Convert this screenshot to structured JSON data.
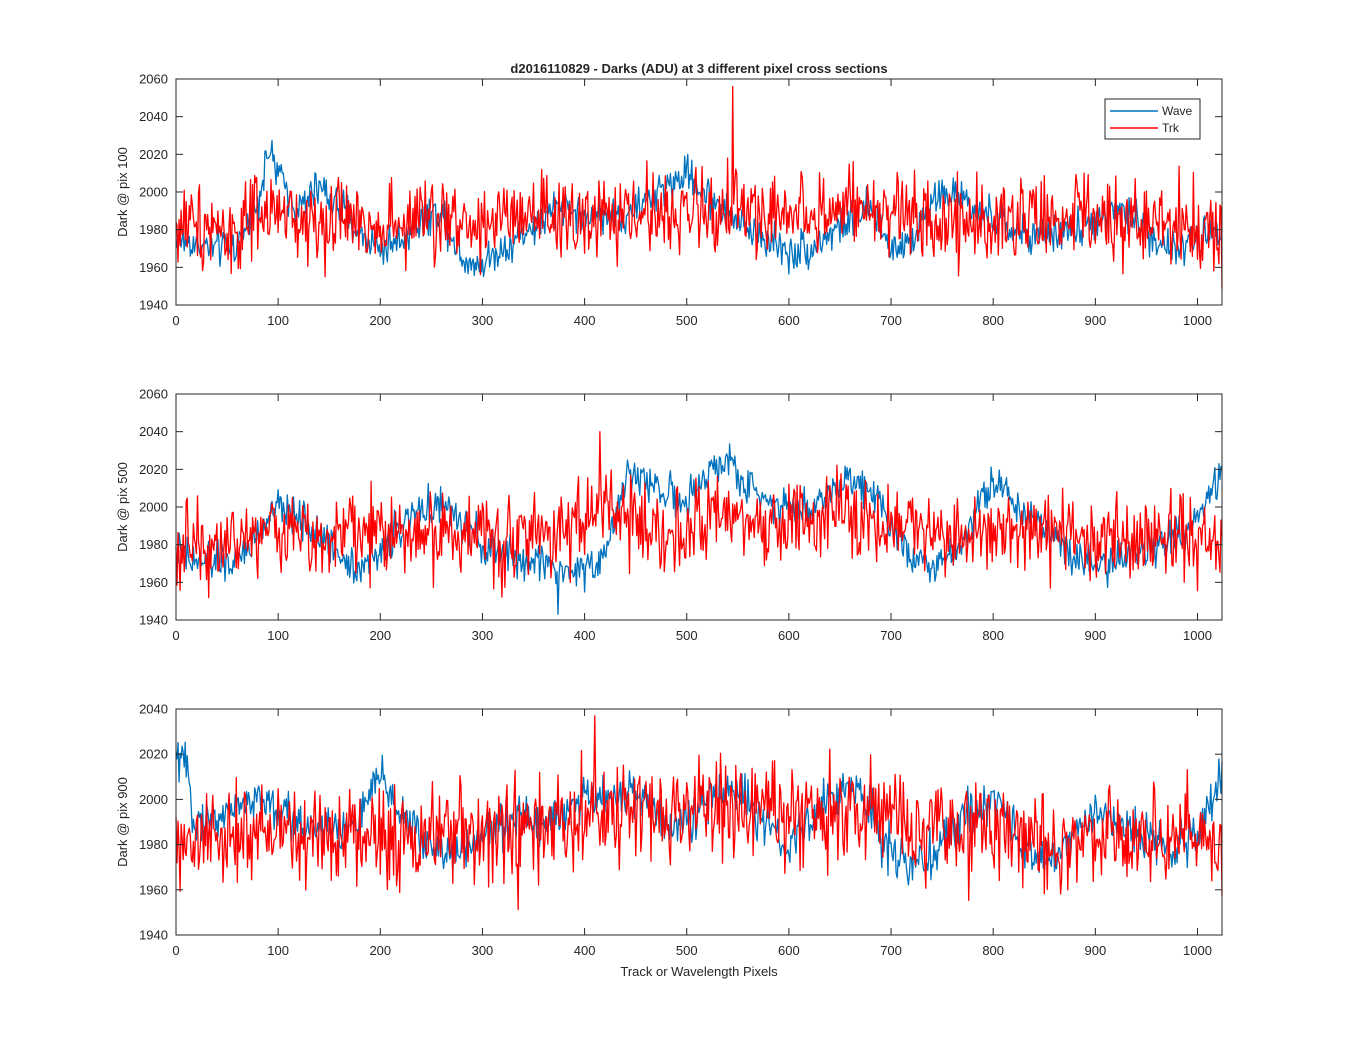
{
  "figure": {
    "title": "d2016110829 - Darks (ADU) at 3 different pixel cross sections",
    "xlabel": "Track or Wavelength Pixels",
    "legend": {
      "position": "top-right",
      "entries": [
        "Wave",
        "Trk"
      ]
    },
    "colors": {
      "Wave": "#0072BD",
      "Trk": "#FF0000"
    }
  },
  "chart_data": [
    {
      "type": "line",
      "ylabel": "Dark @ pix 100",
      "xlim": [
        0,
        1024
      ],
      "ylim": [
        1940,
        2060
      ],
      "x_ticks": [
        0,
        100,
        200,
        300,
        400,
        500,
        600,
        700,
        800,
        900,
        1000
      ],
      "y_ticks": [
        1940,
        1960,
        1980,
        2000,
        2020,
        2040,
        2060
      ],
      "grid": false,
      "series": [
        {
          "name": "Wave",
          "x": [
            0,
            20,
            40,
            60,
            80,
            90,
            100,
            120,
            140,
            160,
            180,
            200,
            220,
            240,
            260,
            280,
            300,
            320,
            340,
            360,
            380,
            400,
            420,
            440,
            460,
            480,
            500,
            520,
            540,
            560,
            580,
            600,
            620,
            640,
            660,
            680,
            700,
            720,
            740,
            760,
            780,
            800,
            820,
            840,
            860,
            880,
            900,
            920,
            940,
            960,
            980,
            1000,
            1024
          ],
          "values": [
            1975,
            1972,
            1970,
            1972,
            1995,
            2022,
            2010,
            1990,
            2003,
            1992,
            1978,
            1970,
            1975,
            1985,
            1990,
            1965,
            1962,
            1970,
            1978,
            1985,
            1995,
            1985,
            1990,
            1985,
            1995,
            2003,
            2010,
            1998,
            1990,
            1980,
            1975,
            1968,
            1970,
            1978,
            1985,
            1990,
            1970,
            1975,
            1995,
            2000,
            1990,
            1985,
            1980,
            1975,
            1978,
            1980,
            1985,
            1990,
            1985,
            1975,
            1968,
            1975,
            1982
          ]
        },
        {
          "name": "Trk",
          "x": [
            0,
            20,
            40,
            60,
            80,
            100,
            120,
            140,
            160,
            180,
            200,
            220,
            240,
            260,
            280,
            300,
            320,
            340,
            360,
            380,
            400,
            420,
            440,
            460,
            480,
            500,
            520,
            540,
            560,
            580,
            600,
            620,
            640,
            660,
            680,
            700,
            720,
            740,
            760,
            780,
            800,
            820,
            840,
            860,
            880,
            900,
            920,
            940,
            960,
            980,
            1000,
            1024
          ],
          "values": [
            1980,
            1985,
            1982,
            1978,
            1985,
            1988,
            1985,
            1983,
            1986,
            1984,
            1985,
            1982,
            1986,
            1984,
            1985,
            1983,
            1985,
            1984,
            1985,
            1983,
            1985,
            1987,
            1986,
            1988,
            1989,
            1990,
            1988,
            1992,
            1990,
            1988,
            1990,
            1989,
            1991,
            1990,
            1988,
            1987,
            1989,
            1986,
            1985,
            1984,
            1987,
            1986,
            1985,
            1984,
            1986,
            1985,
            1983,
            1984,
            1985,
            1983,
            1982,
            1980
          ]
        }
      ],
      "peaks": {
        "Trk": {
          "x": 545,
          "y": 2056
        }
      }
    },
    {
      "type": "line",
      "ylabel": "Dark @ pix 500",
      "xlim": [
        0,
        1024
      ],
      "ylim": [
        1940,
        2060
      ],
      "x_ticks": [
        0,
        100,
        200,
        300,
        400,
        500,
        600,
        700,
        800,
        900,
        1000
      ],
      "y_ticks": [
        1940,
        1960,
        1980,
        2000,
        2020,
        2040,
        2060
      ],
      "grid": false,
      "series": [
        {
          "name": "Wave",
          "x": [
            0,
            20,
            40,
            60,
            80,
            100,
            120,
            140,
            160,
            180,
            200,
            220,
            240,
            260,
            280,
            300,
            320,
            340,
            360,
            380,
            400,
            420,
            440,
            460,
            480,
            500,
            520,
            540,
            560,
            580,
            600,
            620,
            640,
            660,
            680,
            700,
            720,
            740,
            760,
            780,
            800,
            820,
            840,
            860,
            880,
            900,
            920,
            940,
            960,
            980,
            1000,
            1024
          ],
          "values": [
            1975,
            1970,
            1972,
            1970,
            1985,
            2000,
            1995,
            1985,
            1975,
            1968,
            1975,
            1990,
            1998,
            2002,
            1990,
            1980,
            1975,
            1970,
            1972,
            1965,
            1968,
            1975,
            2015,
            2015,
            2008,
            2000,
            2018,
            2025,
            2010,
            2005,
            2000,
            1998,
            2008,
            2015,
            2012,
            1990,
            1975,
            1970,
            1975,
            1995,
            2015,
            2000,
            1995,
            1985,
            1975,
            1970,
            1972,
            1975,
            1980,
            1985,
            1992,
            2020
          ]
        },
        {
          "name": "Trk",
          "x": [
            0,
            20,
            40,
            60,
            80,
            100,
            120,
            140,
            160,
            180,
            200,
            220,
            240,
            260,
            280,
            300,
            320,
            340,
            360,
            380,
            400,
            420,
            440,
            460,
            480,
            500,
            520,
            540,
            560,
            580,
            600,
            620,
            640,
            660,
            680,
            700,
            720,
            740,
            760,
            780,
            800,
            820,
            840,
            860,
            880,
            900,
            920,
            940,
            960,
            980,
            1000,
            1024
          ],
          "values": [
            1978,
            1980,
            1982,
            1983,
            1985,
            1988,
            1986,
            1985,
            1987,
            1986,
            1988,
            1985,
            1986,
            1987,
            1985,
            1986,
            1984,
            1985,
            1986,
            1990,
            1995,
            1998,
            1993,
            1990,
            1989,
            1988,
            1990,
            1992,
            1990,
            1988,
            1992,
            1994,
            1995,
            1996,
            1993,
            1990,
            1989,
            1988,
            1987,
            1989,
            1990,
            1988,
            1987,
            1986,
            1985,
            1984,
            1983,
            1985,
            1984,
            1983,
            1985,
            1982
          ]
        }
      ],
      "peaks": {
        "Trk": {
          "x": 415,
          "y": 2040
        },
        "Wave": {
          "x": 374,
          "y": 1942
        }
      }
    },
    {
      "type": "line",
      "ylabel": "Dark @ pix 900",
      "xlim": [
        0,
        1024
      ],
      "ylim": [
        1940,
        2040
      ],
      "x_ticks": [
        0,
        100,
        200,
        300,
        400,
        500,
        600,
        700,
        800,
        900,
        1000
      ],
      "y_ticks": [
        1940,
        1960,
        1980,
        2000,
        2020,
        2040
      ],
      "grid": false,
      "series": [
        {
          "name": "Wave",
          "x": [
            0,
            5,
            20,
            40,
            60,
            80,
            100,
            120,
            140,
            160,
            180,
            200,
            220,
            240,
            260,
            280,
            300,
            320,
            340,
            360,
            380,
            400,
            420,
            440,
            460,
            480,
            500,
            520,
            540,
            560,
            580,
            600,
            620,
            640,
            660,
            680,
            700,
            720,
            740,
            760,
            780,
            800,
            820,
            840,
            860,
            880,
            900,
            920,
            940,
            960,
            980,
            1000,
            1024
          ],
          "values": [
            2015,
            2020,
            1990,
            1992,
            1998,
            2000,
            1995,
            1988,
            1990,
            1985,
            1992,
            2010,
            1995,
            1982,
            1978,
            1975,
            1985,
            1988,
            1992,
            1990,
            1995,
            2000,
            2002,
            2003,
            1998,
            1990,
            1992,
            1998,
            2005,
            2000,
            1985,
            1978,
            1990,
            2000,
            2005,
            1995,
            1978,
            1970,
            1975,
            1985,
            1995,
            2000,
            1990,
            1972,
            1975,
            1985,
            1995,
            1990,
            1985,
            1982,
            1978,
            1985,
            2010
          ]
        },
        {
          "name": "Trk",
          "x": [
            0,
            20,
            40,
            60,
            80,
            100,
            120,
            140,
            160,
            180,
            200,
            220,
            240,
            260,
            280,
            300,
            320,
            340,
            360,
            380,
            400,
            420,
            440,
            460,
            480,
            500,
            520,
            540,
            560,
            580,
            600,
            620,
            640,
            660,
            680,
            700,
            720,
            740,
            760,
            780,
            800,
            820,
            840,
            860,
            880,
            900,
            920,
            940,
            960,
            980,
            1000,
            1024
          ],
          "values": [
            1975,
            1980,
            1982,
            1983,
            1985,
            1986,
            1985,
            1984,
            1986,
            1985,
            1984,
            1983,
            1985,
            1984,
            1985,
            1983,
            1984,
            1985,
            1986,
            1988,
            1990,
            1991,
            1993,
            1994,
            1996,
            1995,
            1997,
            1996,
            1995,
            1994,
            1993,
            1994,
            1995,
            1996,
            1994,
            1991,
            1988,
            1987,
            1986,
            1987,
            1986,
            1985,
            1984,
            1983,
            1984,
            1985,
            1984,
            1983,
            1982,
            1983,
            1984,
            1978
          ]
        }
      ],
      "peaks": {
        "Trk": {
          "x": 410,
          "y": 2037
        }
      }
    }
  ]
}
